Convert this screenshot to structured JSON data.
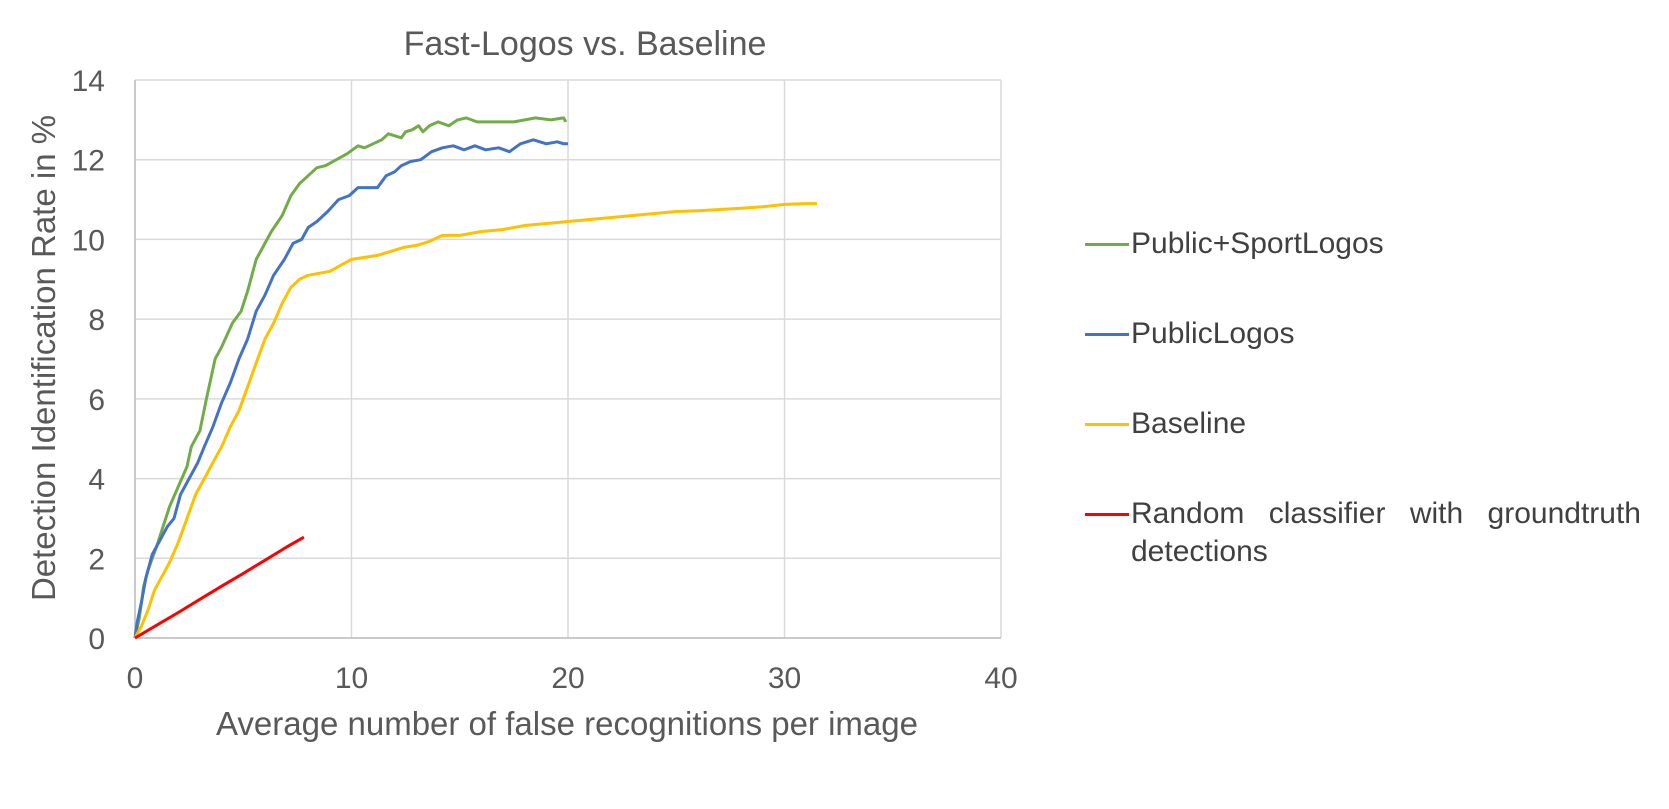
{
  "chart_data": {
    "type": "line",
    "title": "Fast-Logos vs. Baseline",
    "xlabel": "Average number of false recognitions per image",
    "ylabel": "Detection Identification Rate in %",
    "xlim": [
      0,
      40
    ],
    "ylim": [
      0,
      14
    ],
    "xticks": [
      0,
      10,
      20,
      30,
      40
    ],
    "yticks": [
      0,
      2,
      4,
      6,
      8,
      10,
      12,
      14
    ],
    "grid": true,
    "legend_position": "right",
    "series": [
      {
        "name": "Public+SportLogos",
        "color": "#70AD47",
        "points": [
          [
            0,
            0
          ],
          [
            0.2,
            0.5
          ],
          [
            0.4,
            1.3
          ],
          [
            0.6,
            1.7
          ],
          [
            0.8,
            2.0
          ],
          [
            1.0,
            2.3
          ],
          [
            1.3,
            2.8
          ],
          [
            1.6,
            3.3
          ],
          [
            2.0,
            3.8
          ],
          [
            2.4,
            4.3
          ],
          [
            2.6,
            4.8
          ],
          [
            3.0,
            5.2
          ],
          [
            3.3,
            6.0
          ],
          [
            3.5,
            6.5
          ],
          [
            3.7,
            7.0
          ],
          [
            4.0,
            7.3
          ],
          [
            4.5,
            7.9
          ],
          [
            4.9,
            8.2
          ],
          [
            5.2,
            8.7
          ],
          [
            5.6,
            9.5
          ],
          [
            6.0,
            9.9
          ],
          [
            6.3,
            10.2
          ],
          [
            6.8,
            10.6
          ],
          [
            7.2,
            11.1
          ],
          [
            7.6,
            11.4
          ],
          [
            8.0,
            11.6
          ],
          [
            8.4,
            11.8
          ],
          [
            8.8,
            11.85
          ],
          [
            9.3,
            12.0
          ],
          [
            9.8,
            12.15
          ],
          [
            10.3,
            12.35
          ],
          [
            10.6,
            12.3
          ],
          [
            11.0,
            12.4
          ],
          [
            11.4,
            12.5
          ],
          [
            11.7,
            12.65
          ],
          [
            12.0,
            12.6
          ],
          [
            12.3,
            12.55
          ],
          [
            12.5,
            12.7
          ],
          [
            12.8,
            12.75
          ],
          [
            13.1,
            12.85
          ],
          [
            13.3,
            12.7
          ],
          [
            13.6,
            12.85
          ],
          [
            14.0,
            12.95
          ],
          [
            14.5,
            12.85
          ],
          [
            14.9,
            13.0
          ],
          [
            15.3,
            13.05
          ],
          [
            15.8,
            12.95
          ],
          [
            16.5,
            12.95
          ],
          [
            17.5,
            12.95
          ],
          [
            18.5,
            13.05
          ],
          [
            19.2,
            13.0
          ],
          [
            19.8,
            13.05
          ],
          [
            19.9,
            12.95
          ]
        ]
      },
      {
        "name": "PublicLogos",
        "color": "#4472C4",
        "points": [
          [
            0,
            0
          ],
          [
            0.1,
            0.4
          ],
          [
            0.3,
            0.9
          ],
          [
            0.5,
            1.5
          ],
          [
            0.8,
            2.1
          ],
          [
            1.2,
            2.5
          ],
          [
            1.5,
            2.8
          ],
          [
            1.8,
            3.0
          ],
          [
            2.1,
            3.6
          ],
          [
            2.5,
            4.0
          ],
          [
            2.9,
            4.4
          ],
          [
            3.2,
            4.8
          ],
          [
            3.6,
            5.3
          ],
          [
            4.0,
            5.9
          ],
          [
            4.4,
            6.4
          ],
          [
            4.8,
            7.0
          ],
          [
            5.2,
            7.5
          ],
          [
            5.6,
            8.2
          ],
          [
            6.0,
            8.6
          ],
          [
            6.4,
            9.1
          ],
          [
            6.9,
            9.5
          ],
          [
            7.3,
            9.9
          ],
          [
            7.7,
            10.0
          ],
          [
            8.0,
            10.3
          ],
          [
            8.4,
            10.45
          ],
          [
            8.9,
            10.7
          ],
          [
            9.4,
            11.0
          ],
          [
            9.9,
            11.1
          ],
          [
            10.3,
            11.3
          ],
          [
            10.8,
            11.3
          ],
          [
            11.2,
            11.3
          ],
          [
            11.6,
            11.6
          ],
          [
            12.0,
            11.7
          ],
          [
            12.3,
            11.85
          ],
          [
            12.7,
            11.95
          ],
          [
            13.2,
            12.0
          ],
          [
            13.7,
            12.2
          ],
          [
            14.2,
            12.3
          ],
          [
            14.7,
            12.35
          ],
          [
            15.2,
            12.25
          ],
          [
            15.7,
            12.35
          ],
          [
            16.2,
            12.25
          ],
          [
            16.8,
            12.3
          ],
          [
            17.3,
            12.2
          ],
          [
            17.8,
            12.4
          ],
          [
            18.4,
            12.5
          ],
          [
            19.0,
            12.4
          ],
          [
            19.5,
            12.45
          ],
          [
            19.8,
            12.4
          ],
          [
            20.0,
            12.4
          ]
        ]
      },
      {
        "name": "Baseline",
        "color": "#FFC000",
        "points": [
          [
            0,
            0
          ],
          [
            0.3,
            0.3
          ],
          [
            0.6,
            0.7
          ],
          [
            0.9,
            1.2
          ],
          [
            1.2,
            1.5
          ],
          [
            1.6,
            1.9
          ],
          [
            2.0,
            2.4
          ],
          [
            2.4,
            3.0
          ],
          [
            2.8,
            3.6
          ],
          [
            3.2,
            4.0
          ],
          [
            3.6,
            4.4
          ],
          [
            4.0,
            4.8
          ],
          [
            4.4,
            5.3
          ],
          [
            4.8,
            5.7
          ],
          [
            5.2,
            6.3
          ],
          [
            5.6,
            6.9
          ],
          [
            6.0,
            7.5
          ],
          [
            6.4,
            7.9
          ],
          [
            6.8,
            8.4
          ],
          [
            7.2,
            8.8
          ],
          [
            7.6,
            9.0
          ],
          [
            8.0,
            9.1
          ],
          [
            8.5,
            9.15
          ],
          [
            9.0,
            9.2
          ],
          [
            9.5,
            9.35
          ],
          [
            10.0,
            9.5
          ],
          [
            10.6,
            9.55
          ],
          [
            11.2,
            9.6
          ],
          [
            11.8,
            9.7
          ],
          [
            12.4,
            9.8
          ],
          [
            13.0,
            9.85
          ],
          [
            13.6,
            9.95
          ],
          [
            14.2,
            10.1
          ],
          [
            15.0,
            10.1
          ],
          [
            16.0,
            10.2
          ],
          [
            17.0,
            10.25
          ],
          [
            18.0,
            10.35
          ],
          [
            19.0,
            10.4
          ],
          [
            20.0,
            10.45
          ],
          [
            21.0,
            10.5
          ],
          [
            22.0,
            10.55
          ],
          [
            23.0,
            10.6
          ],
          [
            24.0,
            10.65
          ],
          [
            25.0,
            10.7
          ],
          [
            26.0,
            10.72
          ],
          [
            27.0,
            10.75
          ],
          [
            28.0,
            10.78
          ],
          [
            29.0,
            10.82
          ],
          [
            30.0,
            10.88
          ],
          [
            31.0,
            10.9
          ],
          [
            31.5,
            10.9
          ]
        ]
      },
      {
        "name": "Random classifier with groundtruth detections",
        "color": "#FF0000",
        "points": [
          [
            0,
            0
          ],
          [
            1,
            0.32
          ],
          [
            2,
            0.64
          ],
          [
            3,
            0.97
          ],
          [
            4,
            1.3
          ],
          [
            5,
            1.62
          ],
          [
            6,
            1.95
          ],
          [
            7,
            2.28
          ],
          [
            7.8,
            2.53
          ]
        ]
      }
    ]
  }
}
